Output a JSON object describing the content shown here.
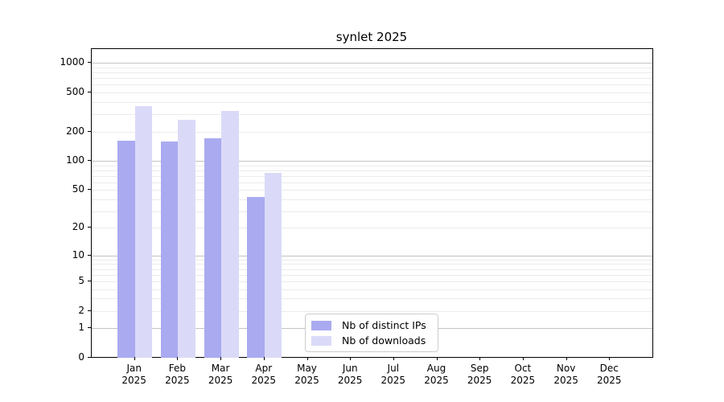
{
  "title": "synlet 2025",
  "chart_data": {
    "type": "bar",
    "title": "synlet 2025",
    "categories": [
      "Jan",
      "Feb",
      "Mar",
      "Apr",
      "May",
      "Jun",
      "Jul",
      "Aug",
      "Sep",
      "Oct",
      "Nov",
      "Dec"
    ],
    "year_label": "2025",
    "series": [
      {
        "name": "Nb of distinct IPs",
        "key": "distinct-ips",
        "color": "#aaaaf0",
        "values": [
          161,
          159,
          170,
          42,
          0,
          0,
          0,
          0,
          0,
          0,
          0,
          0
        ]
      },
      {
        "name": "Nb of downloads",
        "key": "downloads",
        "color": "#dadaf8",
        "values": [
          363,
          264,
          326,
          75,
          0,
          0,
          0,
          0,
          0,
          0,
          0,
          0
        ]
      }
    ],
    "y_ticks": [
      0,
      1,
      2,
      5,
      10,
      20,
      50,
      100,
      200,
      500,
      1000
    ],
    "y_scale": "log10(1+v)",
    "ylim": [
      0,
      1400
    ],
    "xlabel": "",
    "ylabel": "",
    "grid": true,
    "legend_position": "lower center inside"
  },
  "colors": {
    "bar_distinct_ips": "#aaaaf0",
    "bar_downloads": "#dadaf8",
    "grid_major": "#c3c3c3",
    "grid_minor": "#ebebeb",
    "axis": "#000000",
    "legend_border": "#cccccc",
    "background": "#ffffff"
  }
}
